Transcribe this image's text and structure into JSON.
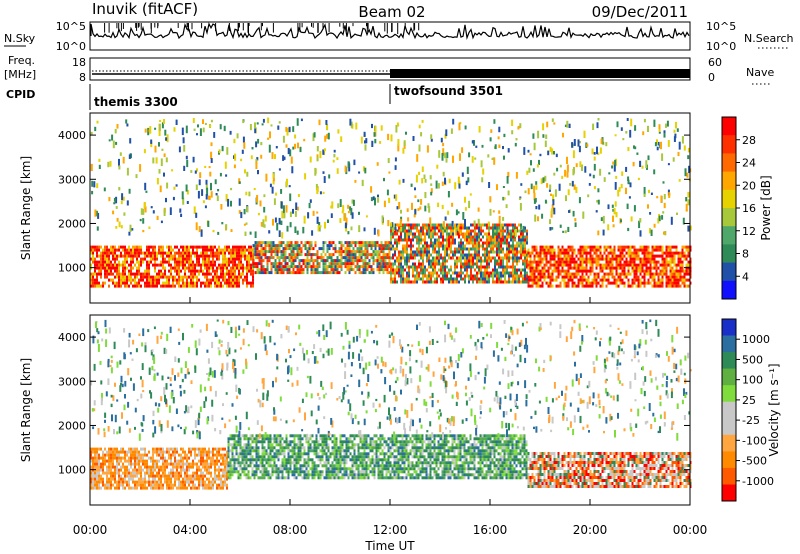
{
  "header": {
    "station": "Inuvik (fitACF)",
    "beam": "Beam 02",
    "date": "09/Dec/2011"
  },
  "top_strip": {
    "left_label": "N.Sky",
    "right_label": "N.Search",
    "left_ticks": [
      "10^5",
      "10^0"
    ],
    "right_ticks": [
      "10^5",
      "10^0"
    ]
  },
  "freq_strip": {
    "left_label_1": "Freq.",
    "left_label_2": "[MHz]",
    "left_ticks": [
      "18",
      "8"
    ],
    "right_ticks": [
      "60",
      "0"
    ],
    "right_label": "Nave"
  },
  "cpid": {
    "label": "CPID",
    "modes": [
      {
        "name": "themis 3300",
        "start_hour": 0
      },
      {
        "name": "twofsound 3501",
        "start_hour": 12
      }
    ]
  },
  "chart_data": [
    {
      "type": "heatmap",
      "panel": "power",
      "ylabel": "Slant Range [km]",
      "yticks": [
        "1000",
        "2000",
        "3000",
        "4000"
      ],
      "ylim": [
        200,
        4500
      ],
      "xlim": [
        0,
        24
      ],
      "colorbar_label": "Power [dB]",
      "colorbar_ticks": [
        "28",
        "24",
        "20",
        "16",
        "12",
        "8",
        "4"
      ],
      "colorbar_colors": [
        "#ff0000",
        "#ff3000",
        "#ff6a00",
        "#ffa600",
        "#e6d200",
        "#a8c83c",
        "#4fa86a",
        "#2e8b57",
        "#2050a8",
        "#1010ff"
      ],
      "bands": [
        {
          "x_start": 0.0,
          "x_end": 6.5,
          "range_start": 600,
          "range_end": 1500,
          "level": "high"
        },
        {
          "x_start": 6.5,
          "x_end": 12.0,
          "range_start": 900,
          "range_end": 1600,
          "level": "mid"
        },
        {
          "x_start": 12.0,
          "x_end": 17.5,
          "range_start": 700,
          "range_end": 2000,
          "level": "mid"
        },
        {
          "x_start": 17.5,
          "x_end": 24.0,
          "range_start": 600,
          "range_end": 1500,
          "level": "high"
        }
      ]
    },
    {
      "type": "heatmap",
      "panel": "velocity",
      "ylabel": "Slant Range [km]",
      "yticks": [
        "1000",
        "2000",
        "3000",
        "4000"
      ],
      "ylim": [
        200,
        4500
      ],
      "xlim": [
        0,
        24
      ],
      "xlabel": "Time UT",
      "xticks": [
        "00:00",
        "04:00",
        "08:00",
        "12:00",
        "16:00",
        "20:00",
        "00:00"
      ],
      "colorbar_label": "Velocity [m s⁻¹]",
      "colorbar_ticks": [
        "1000",
        "500",
        "100",
        "25",
        "-25",
        "-100",
        "-500",
        "-1000"
      ],
      "colorbar_colors": [
        "#1a2fc8",
        "#2a6fa0",
        "#2e8b57",
        "#5fb040",
        "#7fdc3c",
        "#c8c8c8",
        "#c8c8c8",
        "#ffa640",
        "#ff8a00",
        "#ff5a00",
        "#ff0000"
      ],
      "bands": [
        {
          "x_start": 0.0,
          "x_end": 5.5,
          "range_start": 600,
          "range_end": 1500,
          "level": "negative"
        },
        {
          "x_start": 5.5,
          "x_end": 17.5,
          "range_start": 800,
          "range_end": 1800,
          "level": "positive"
        },
        {
          "x_start": 17.5,
          "x_end": 24.0,
          "range_start": 600,
          "range_end": 1400,
          "level": "mixed"
        }
      ]
    }
  ]
}
